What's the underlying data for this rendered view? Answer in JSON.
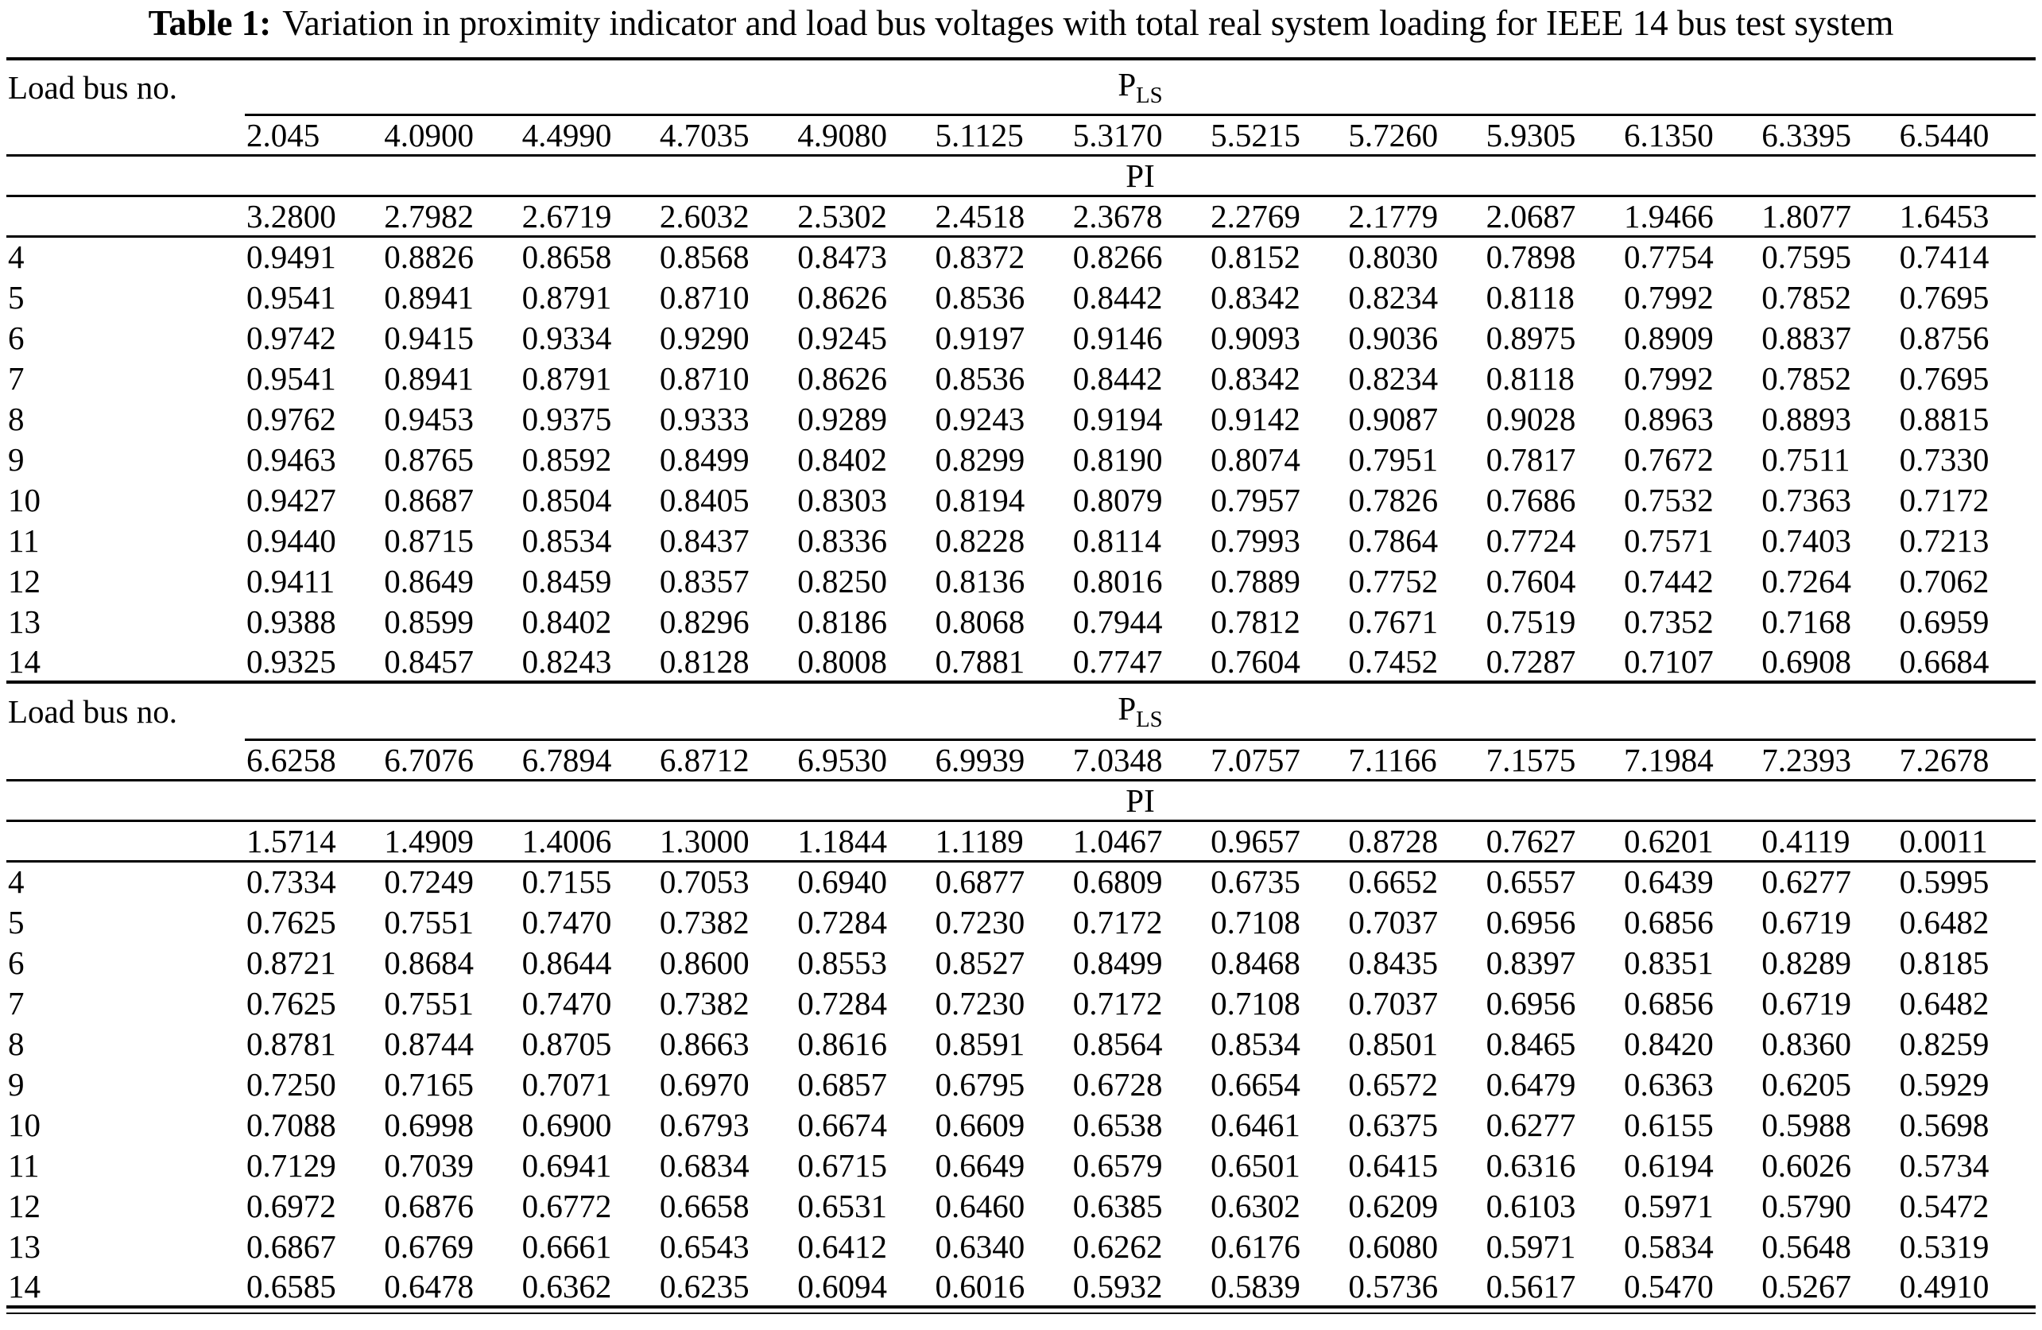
{
  "title": {
    "label": "Table 1:",
    "text": "Variation in proximity indicator and load bus voltages with total real system loading for IEEE 14 bus test system"
  },
  "table": {
    "row_header": "Load bus no.",
    "pls": {
      "base": "P",
      "sub": "LS"
    },
    "pi_label": "PI",
    "text_color": "#000000",
    "background_color": "#ffffff",
    "sections": [
      {
        "load_bus_label": "Load bus no.",
        "pls_values": [
          "2.045",
          "4.0900",
          "4.4990",
          "4.7035",
          "4.9080",
          "5.1125",
          "5.3170",
          "5.5215",
          "5.7260",
          "5.9305",
          "6.1350",
          "6.3395",
          "6.5440"
        ],
        "pi_values": [
          "3.2800",
          "2.7982",
          "2.6719",
          "2.6032",
          "2.5302",
          "2.4518",
          "2.3678",
          "2.2769",
          "2.1779",
          "2.0687",
          "1.9466",
          "1.8077",
          "1.6453"
        ],
        "rows": [
          {
            "bus": "4",
            "values": [
              "0.9491",
              "0.8826",
              "0.8658",
              "0.8568",
              "0.8473",
              "0.8372",
              "0.8266",
              "0.8152",
              "0.8030",
              "0.7898",
              "0.7754",
              "0.7595",
              "0.7414"
            ]
          },
          {
            "bus": "5",
            "values": [
              "0.9541",
              "0.8941",
              "0.8791",
              "0.8710",
              "0.8626",
              "0.8536",
              "0.8442",
              "0.8342",
              "0.8234",
              "0.8118",
              "0.7992",
              "0.7852",
              "0.7695"
            ]
          },
          {
            "bus": "6",
            "values": [
              "0.9742",
              "0.9415",
              "0.9334",
              "0.9290",
              "0.9245",
              "0.9197",
              "0.9146",
              "0.9093",
              "0.9036",
              "0.8975",
              "0.8909",
              "0.8837",
              "0.8756"
            ]
          },
          {
            "bus": "7",
            "values": [
              "0.9541",
              "0.8941",
              "0.8791",
              "0.8710",
              "0.8626",
              "0.8536",
              "0.8442",
              "0.8342",
              "0.8234",
              "0.8118",
              "0.7992",
              "0.7852",
              "0.7695"
            ]
          },
          {
            "bus": "8",
            "values": [
              "0.9762",
              "0.9453",
              "0.9375",
              "0.9333",
              "0.9289",
              "0.9243",
              "0.9194",
              "0.9142",
              "0.9087",
              "0.9028",
              "0.8963",
              "0.8893",
              "0.8815"
            ]
          },
          {
            "bus": "9",
            "values": [
              "0.9463",
              "0.8765",
              "0.8592",
              "0.8499",
              "0.8402",
              "0.8299",
              "0.8190",
              "0.8074",
              "0.7951",
              "0.7817",
              "0.7672",
              "0.7511",
              "0.7330"
            ]
          },
          {
            "bus": "10",
            "values": [
              "0.9427",
              "0.8687",
              "0.8504",
              "0.8405",
              "0.8303",
              "0.8194",
              "0.8079",
              "0.7957",
              "0.7826",
              "0.7686",
              "0.7532",
              "0.7363",
              "0.7172"
            ]
          },
          {
            "bus": "11",
            "values": [
              "0.9440",
              "0.8715",
              "0.8534",
              "0.8437",
              "0.8336",
              "0.8228",
              "0.8114",
              "0.7993",
              "0.7864",
              "0.7724",
              "0.7571",
              "0.7403",
              "0.7213"
            ]
          },
          {
            "bus": "12",
            "values": [
              "0.9411",
              "0.8649",
              "0.8459",
              "0.8357",
              "0.8250",
              "0.8136",
              "0.8016",
              "0.7889",
              "0.7752",
              "0.7604",
              "0.7442",
              "0.7264",
              "0.7062"
            ]
          },
          {
            "bus": "13",
            "values": [
              "0.9388",
              "0.8599",
              "0.8402",
              "0.8296",
              "0.8186",
              "0.8068",
              "0.7944",
              "0.7812",
              "0.7671",
              "0.7519",
              "0.7352",
              "0.7168",
              "0.6959"
            ]
          },
          {
            "bus": "14",
            "values": [
              "0.9325",
              "0.8457",
              "0.8243",
              "0.8128",
              "0.8008",
              "0.7881",
              "0.7747",
              "0.7604",
              "0.7452",
              "0.7287",
              "0.7107",
              "0.6908",
              "0.6684"
            ]
          }
        ]
      },
      {
        "load_bus_label": "Load bus no.",
        "pls_values": [
          "6.6258",
          "6.7076",
          "6.7894",
          "6.8712",
          "6.9530",
          "6.9939",
          "7.0348",
          "7.0757",
          "7.1166",
          "7.1575",
          "7.1984",
          "7.2393",
          "7.2678"
        ],
        "pi_values": [
          "1.5714",
          "1.4909",
          "1.4006",
          "1.3000",
          "1.1844",
          "1.1189",
          "1.0467",
          "0.9657",
          "0.8728",
          "0.7627",
          "0.6201",
          "0.4119",
          "0.0011"
        ],
        "rows": [
          {
            "bus": "4",
            "values": [
              "0.7334",
              "0.7249",
              "0.7155",
              "0.7053",
              "0.6940",
              "0.6877",
              "0.6809",
              "0.6735",
              "0.6652",
              "0.6557",
              "0.6439",
              "0.6277",
              "0.5995"
            ]
          },
          {
            "bus": "5",
            "values": [
              "0.7625",
              "0.7551",
              "0.7470",
              "0.7382",
              "0.7284",
              "0.7230",
              "0.7172",
              "0.7108",
              "0.7037",
              "0.6956",
              "0.6856",
              "0.6719",
              "0.6482"
            ]
          },
          {
            "bus": "6",
            "values": [
              "0.8721",
              "0.8684",
              "0.8644",
              "0.8600",
              "0.8553",
              "0.8527",
              "0.8499",
              "0.8468",
              "0.8435",
              "0.8397",
              "0.8351",
              "0.8289",
              "0.8185"
            ]
          },
          {
            "bus": "7",
            "values": [
              "0.7625",
              "0.7551",
              "0.7470",
              "0.7382",
              "0.7284",
              "0.7230",
              "0.7172",
              "0.7108",
              "0.7037",
              "0.6956",
              "0.6856",
              "0.6719",
              "0.6482"
            ]
          },
          {
            "bus": "8",
            "values": [
              "0.8781",
              "0.8744",
              "0.8705",
              "0.8663",
              "0.8616",
              "0.8591",
              "0.8564",
              "0.8534",
              "0.8501",
              "0.8465",
              "0.8420",
              "0.8360",
              "0.8259"
            ]
          },
          {
            "bus": "9",
            "values": [
              "0.7250",
              "0.7165",
              "0.7071",
              "0.6970",
              "0.6857",
              "0.6795",
              "0.6728",
              "0.6654",
              "0.6572",
              "0.6479",
              "0.6363",
              "0.6205",
              "0.5929"
            ]
          },
          {
            "bus": "10",
            "values": [
              "0.7088",
              "0.6998",
              "0.6900",
              "0.6793",
              "0.6674",
              "0.6609",
              "0.6538",
              "0.6461",
              "0.6375",
              "0.6277",
              "0.6155",
              "0.5988",
              "0.5698"
            ]
          },
          {
            "bus": "11",
            "values": [
              "0.7129",
              "0.7039",
              "0.6941",
              "0.6834",
              "0.6715",
              "0.6649",
              "0.6579",
              "0.6501",
              "0.6415",
              "0.6316",
              "0.6194",
              "0.6026",
              "0.5734"
            ]
          },
          {
            "bus": "12",
            "values": [
              "0.6972",
              "0.6876",
              "0.6772",
              "0.6658",
              "0.6531",
              "0.6460",
              "0.6385",
              "0.6302",
              "0.6209",
              "0.6103",
              "0.5971",
              "0.5790",
              "0.5472"
            ]
          },
          {
            "bus": "13",
            "values": [
              "0.6867",
              "0.6769",
              "0.6661",
              "0.6543",
              "0.6412",
              "0.6340",
              "0.6262",
              "0.6176",
              "0.6080",
              "0.5971",
              "0.5834",
              "0.5648",
              "0.5319"
            ]
          },
          {
            "bus": "14",
            "values": [
              "0.6585",
              "0.6478",
              "0.6362",
              "0.6235",
              "0.6094",
              "0.6016",
              "0.5932",
              "0.5839",
              "0.5736",
              "0.5617",
              "0.5470",
              "0.5267",
              "0.4910"
            ]
          }
        ]
      }
    ]
  }
}
